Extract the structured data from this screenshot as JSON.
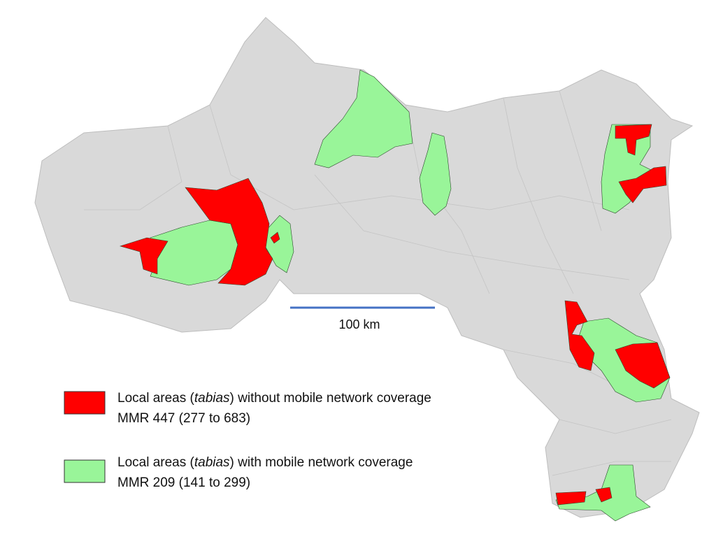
{
  "scale_bar": {
    "label": "100 km"
  },
  "legend": [
    {
      "label_parts": [
        "Local areas (",
        "tabias",
        ") without mobile network coverage"
      ],
      "detail": "MMR 447 (277 to 683)",
      "color": "#ff0000"
    },
    {
      "label_parts": [
        "Local areas (",
        "tabias",
        ") with mobile network coverage"
      ],
      "detail": "MMR 209 (141 to 299)",
      "color": "#99f599"
    }
  ]
}
